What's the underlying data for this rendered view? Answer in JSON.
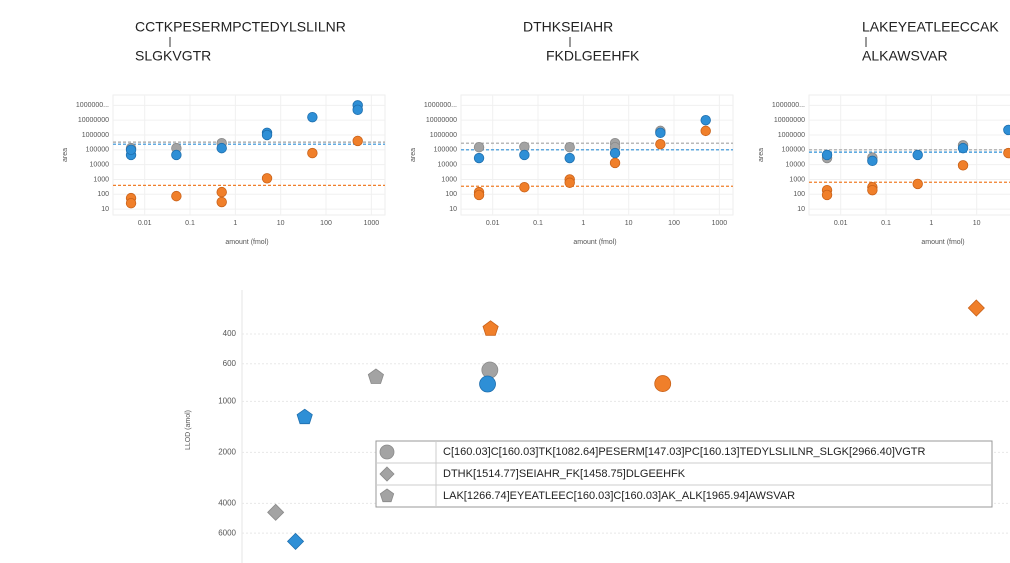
{
  "chart_data": [
    {
      "type": "scatter",
      "title": "CCTKPESERMPCTEDYLSLILNR",
      "subtitle": "SLGKVGTR",
      "x_label": "amount (fmol)",
      "y_label": "area",
      "xscale": "log",
      "yscale": "log",
      "grid": true,
      "xlim": [
        0.002,
        2000
      ],
      "xticks": [
        0.01,
        0.1,
        1,
        10,
        100,
        1000
      ],
      "ylim": [
        4,
        500000000
      ],
      "yticks": [
        10,
        100,
        1000,
        10000,
        100000,
        1000000,
        10000000,
        {
          "value": 100000000,
          "label": "1000000..."
        }
      ],
      "series": [
        {
          "color": "#a3a3a3",
          "x": [
            0.005,
            0.05,
            0.5
          ],
          "values": [
            130000,
            130000,
            280000
          ]
        },
        {
          "color": "#2e8fd6",
          "x": [
            0.005,
            0.005,
            0.05,
            0.5,
            5,
            5,
            50,
            500,
            500
          ],
          "values": [
            45000,
            100000,
            45000,
            130000,
            1400000,
            1000000,
            16000000,
            100000000,
            50000000
          ]
        },
        {
          "color": "#f07f2a",
          "x": [
            0.005,
            0.005,
            0.05,
            0.5,
            0.5,
            5,
            50,
            500
          ],
          "values": [
            55,
            25,
            75,
            140,
            30,
            1200,
            60000,
            400000
          ]
        }
      ],
      "hlines": [
        {
          "color": "#a3a3a3",
          "value": 330000
        },
        {
          "color": "#2e8fd6",
          "value": 240000
        },
        {
          "color": "#f07f2a",
          "value": 400
        }
      ]
    },
    {
      "type": "scatter",
      "title": "DTHKSEIAHR",
      "subtitle": "FKDLGEEHFK",
      "x_label": "amount (fmol)",
      "y_label": "area",
      "xscale": "log",
      "yscale": "log",
      "grid": true,
      "xlim": [
        0.002,
        2000
      ],
      "xticks": [
        0.01,
        0.1,
        1,
        10,
        100,
        1000
      ],
      "ylim": [
        4,
        500000000
      ],
      "yticks": [
        10,
        100,
        1000,
        10000,
        100000,
        1000000,
        10000000,
        {
          "value": 100000000,
          "label": "1000000..."
        }
      ],
      "series": [
        {
          "color": "#a3a3a3",
          "x": [
            0.005,
            0.05,
            0.5,
            5,
            5,
            50
          ],
          "values": [
            150000,
            160000,
            150000,
            280000,
            150000,
            1900000
          ]
        },
        {
          "color": "#2e8fd6",
          "x": [
            0.005,
            0.05,
            0.5,
            5,
            50,
            500
          ],
          "values": [
            28000,
            45000,
            28000,
            60000,
            1400000,
            10000000
          ]
        },
        {
          "color": "#f07f2a",
          "x": [
            0.005,
            0.005,
            0.05,
            0.5,
            0.5,
            5,
            50,
            500
          ],
          "values": [
            140,
            90,
            300,
            1000,
            600,
            13000,
            240000,
            1900000
          ]
        }
      ],
      "hlines": [
        {
          "color": "#a3a3a3",
          "value": 280000
        },
        {
          "color": "#2e8fd6",
          "value": 100000
        },
        {
          "color": "#f07f2a",
          "value": 350
        }
      ]
    },
    {
      "type": "scatter",
      "title": "LAKEYEATLEECCAK",
      "subtitle": "ALKAWSVAR",
      "x_label": "amount (fmol)",
      "y_label": "area",
      "xscale": "log",
      "yscale": "log",
      "grid": true,
      "xlim": [
        0.002,
        2000
      ],
      "xticks": [
        0.01,
        0.1,
        1,
        10
      ],
      "ylim": [
        4,
        500000000
      ],
      "yticks": [
        10,
        100,
        1000,
        10000,
        100000,
        1000000,
        10000000,
        {
          "value": 100000000,
          "label": "1000000..."
        }
      ],
      "series": [
        {
          "color": "#a3a3a3",
          "x": [
            0.005,
            0.05,
            5
          ],
          "values": [
            28000,
            30000,
            200000
          ]
        },
        {
          "color": "#2e8fd6",
          "x": [
            0.005,
            0.05,
            0.5,
            5,
            50
          ],
          "values": [
            45000,
            18000,
            45000,
            130000,
            2200000
          ]
        },
        {
          "color": "#f07f2a",
          "x": [
            0.005,
            0.005,
            0.05,
            0.05,
            0.5,
            5,
            50
          ],
          "values": [
            190,
            90,
            300,
            190,
            500,
            9000,
            60000
          ]
        }
      ],
      "hlines": [
        {
          "color": "#a3a3a3",
          "value": 100000
        },
        {
          "color": "#2e8fd6",
          "value": 70000
        },
        {
          "color": "#f07f2a",
          "value": 650
        }
      ]
    },
    {
      "type": "shape-scatter",
      "y_label": "LLOD (amol)",
      "yscale": "log",
      "y_reversed": true,
      "grid": true,
      "xlim": [
        -0.44,
        9.6
      ],
      "ylim": [
        220,
        9000
      ],
      "yticks": [
        400,
        600,
        1000,
        2000,
        4000,
        6000
      ],
      "series": [
        {
          "name": "C[160.03]C[160.03]TK[1082.64]PESERM[147.03]PC[160.13]TEDYLSLILNR_SLGK[2966.40]VGTR",
          "marker": "circle",
          "color": "#a3a3a3",
          "x": [
            2.8,
            2.77,
            5.06
          ],
          "values": [
            653,
            790,
            785
          ],
          "colors": [
            "#a3a3a3",
            "#2e8fd6",
            "#f07f2a"
          ]
        },
        {
          "name": "DTHK[1514.77]SEIAHR_FK[1458.75]DLGEEHFK",
          "marker": "diamond",
          "color": "#a3a3a3",
          "x": [
            0,
            0.26,
            9.16
          ],
          "values": [
            4520,
            6710,
            281
          ],
          "colors": [
            "#a3a3a3",
            "#2e8fd6",
            "#f07f2a"
          ]
        },
        {
          "name": "LAK[1266.74]EYEATLEEC[160.03]C[160.03]AK_ALK[1965.94]AWSVAR",
          "marker": "pentagon",
          "color": "#a3a3a3",
          "x": [
            1.31,
            0.38,
            2.81
          ],
          "values": [
            718,
            1240,
            373
          ],
          "colors": [
            "#a3a3a3",
            "#2e8fd6",
            "#f07f2a"
          ]
        }
      ]
    }
  ]
}
